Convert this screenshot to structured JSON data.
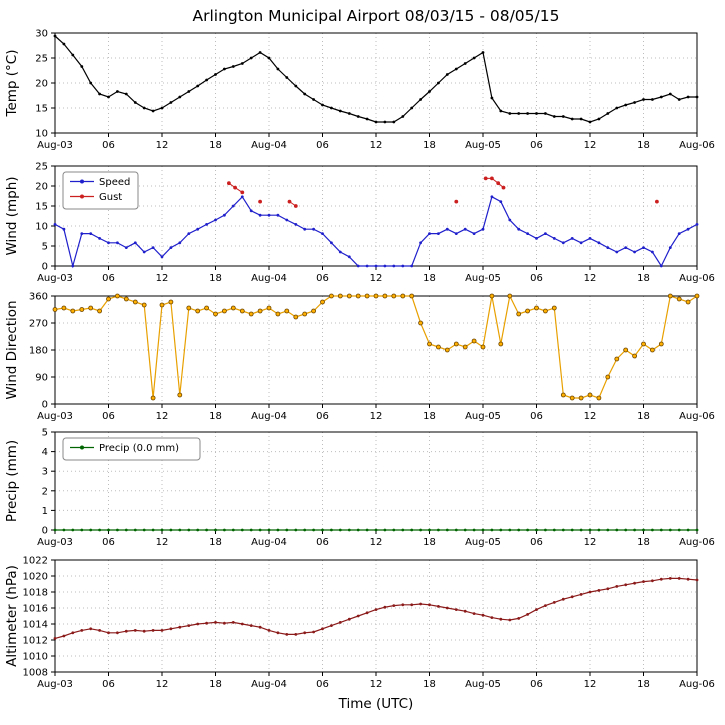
{
  "title": "Arlington Municipal Airport 08/03/15 - 08/05/15",
  "xlabel": "Time (UTC)",
  "x_ticks": {
    "hours": [
      0,
      6,
      12,
      18,
      24,
      30,
      36,
      42,
      48,
      54,
      60,
      66,
      72
    ],
    "labels": [
      "Aug-03",
      "06",
      "12",
      "18",
      "Aug-04",
      "06",
      "12",
      "18",
      "Aug-05",
      "06",
      "12",
      "18",
      "Aug-06"
    ]
  },
  "chart_data": [
    {
      "id": "temp",
      "type": "line",
      "ylabel": "Temp (°C)",
      "ylim": [
        10,
        30
      ],
      "yticks": [
        10,
        15,
        20,
        25,
        30
      ],
      "series": [
        {
          "name": "Temperature",
          "color": "#000000",
          "values": [
            29.4,
            27.8,
            25.6,
            23.3,
            20.0,
            17.8,
            17.2,
            18.3,
            17.8,
            16.1,
            15.0,
            14.4,
            15.0,
            16.1,
            17.2,
            18.3,
            19.4,
            20.6,
            21.7,
            22.8,
            23.3,
            23.9,
            25.0,
            26.1,
            25.0,
            22.8,
            21.1,
            19.4,
            17.8,
            16.7,
            15.6,
            15.0,
            14.4,
            13.9,
            13.3,
            12.8,
            12.2,
            12.2,
            12.2,
            13.3,
            15.0,
            16.7,
            18.3,
            20.0,
            21.7,
            22.8,
            23.9,
            25.0,
            26.1,
            17.0,
            14.4,
            13.9,
            13.9,
            13.9,
            13.9,
            13.9,
            13.3,
            13.3,
            12.8,
            12.8,
            12.2,
            12.8,
            13.9,
            15.0,
            15.6,
            16.1,
            16.7,
            16.7,
            17.2,
            17.8,
            16.7,
            17.2,
            17.2
          ]
        }
      ]
    },
    {
      "id": "wind",
      "type": "line",
      "ylabel": "Wind (mph)",
      "ylim": [
        0,
        25
      ],
      "yticks": [
        0,
        5,
        10,
        15,
        20,
        25
      ],
      "legend_items": [
        {
          "label": "Speed",
          "color": "#2020cc"
        },
        {
          "label": "Gust",
          "color": "#cc2020"
        }
      ],
      "series": [
        {
          "name": "Speed",
          "color": "#2020cc",
          "values": [
            10.4,
            9.2,
            0,
            8.1,
            8.1,
            6.9,
            5.8,
            5.8,
            4.6,
            5.8,
            3.5,
            4.6,
            2.3,
            4.6,
            5.8,
            8.1,
            9.2,
            10.4,
            11.5,
            12.7,
            15.0,
            17.3,
            13.8,
            12.7,
            12.7,
            12.7,
            11.5,
            10.4,
            9.2,
            9.2,
            8.1,
            5.8,
            3.5,
            2.3,
            0,
            0,
            0,
            0,
            0,
            0,
            0,
            5.8,
            8.1,
            8.1,
            9.2,
            8.1,
            9.2,
            8.1,
            9.2,
            17.3,
            16.1,
            11.5,
            9.2,
            8.1,
            6.9,
            8.1,
            6.9,
            5.8,
            6.9,
            5.8,
            6.9,
            5.8,
            4.6,
            3.5,
            4.6,
            3.5,
            4.6,
            3.5,
            0,
            4.6,
            8.1,
            9.2,
            10.4
          ]
        },
        {
          "name": "Gust",
          "color": "#cc2020",
          "points": [
            [
              19.5,
              20.7
            ],
            [
              20.2,
              19.6
            ],
            [
              21.0,
              18.4
            ],
            null,
            [
              23.0,
              16.1
            ],
            null,
            [
              26.3,
              16.1
            ],
            [
              27.0,
              15.0
            ],
            null,
            [
              45.0,
              16.1
            ],
            null,
            [
              48.3,
              21.9
            ],
            [
              49.0,
              21.9
            ],
            [
              49.7,
              20.7
            ],
            [
              50.3,
              19.6
            ],
            null,
            [
              67.5,
              16.1
            ]
          ]
        }
      ]
    },
    {
      "id": "wind-direction",
      "type": "line",
      "ylabel": "Wind Direction",
      "ylim": [
        0,
        360
      ],
      "yticks": [
        0,
        90,
        180,
        270,
        360
      ],
      "series": [
        {
          "name": "Direction",
          "color": "#e8a000",
          "marker_fill": "#ffb000",
          "marker_edge": "#6b4300",
          "values": [
            315,
            320,
            310,
            315,
            320,
            310,
            350,
            360,
            350,
            340,
            330,
            20,
            330,
            340,
            30,
            320,
            310,
            320,
            300,
            310,
            320,
            310,
            300,
            310,
            320,
            300,
            310,
            290,
            300,
            310,
            340,
            360,
            360,
            360,
            360,
            360,
            360,
            360,
            360,
            360,
            360,
            270,
            200,
            190,
            180,
            200,
            190,
            210,
            190,
            360,
            200,
            360,
            300,
            310,
            320,
            310,
            320,
            30,
            20,
            20,
            30,
            20,
            90,
            150,
            180,
            160,
            200,
            180,
            200,
            360,
            350,
            340,
            360
          ]
        }
      ]
    },
    {
      "id": "precip",
      "type": "line",
      "ylabel": "Precip (mm)",
      "ylim": [
        0,
        5
      ],
      "yticks": [
        0,
        1,
        2,
        3,
        4,
        5
      ],
      "legend_items": [
        {
          "label": "Precip (0.0 mm)",
          "color": "#006400"
        }
      ],
      "series": [
        {
          "name": "Precip",
          "color": "#006400",
          "constant": 0,
          "count": 73
        }
      ]
    },
    {
      "id": "altimeter",
      "type": "line",
      "ylabel": "Altimeter (hPa)",
      "ylim": [
        1008,
        1022
      ],
      "yticks": [
        1008,
        1010,
        1012,
        1014,
        1016,
        1018,
        1020,
        1022
      ],
      "series": [
        {
          "name": "Altimeter",
          "color": "#8b1a1a",
          "values": [
            1012.2,
            1012.5,
            1012.9,
            1013.2,
            1013.4,
            1013.2,
            1012.9,
            1012.9,
            1013.1,
            1013.2,
            1013.1,
            1013.2,
            1013.2,
            1013.4,
            1013.6,
            1013.8,
            1014.0,
            1014.1,
            1014.2,
            1014.1,
            1014.2,
            1014.0,
            1013.8,
            1013.6,
            1013.2,
            1012.9,
            1012.7,
            1012.7,
            1012.9,
            1013.0,
            1013.4,
            1013.8,
            1014.2,
            1014.6,
            1015.0,
            1015.4,
            1015.8,
            1016.1,
            1016.3,
            1016.4,
            1016.4,
            1016.5,
            1016.4,
            1016.2,
            1016.0,
            1015.8,
            1015.6,
            1015.3,
            1015.1,
            1014.8,
            1014.6,
            1014.5,
            1014.7,
            1015.2,
            1015.8,
            1016.3,
            1016.7,
            1017.1,
            1017.4,
            1017.7,
            1018.0,
            1018.2,
            1018.4,
            1018.7,
            1018.9,
            1019.1,
            1019.3,
            1019.4,
            1019.6,
            1019.7,
            1019.7,
            1019.6,
            1019.5
          ]
        }
      ]
    }
  ]
}
